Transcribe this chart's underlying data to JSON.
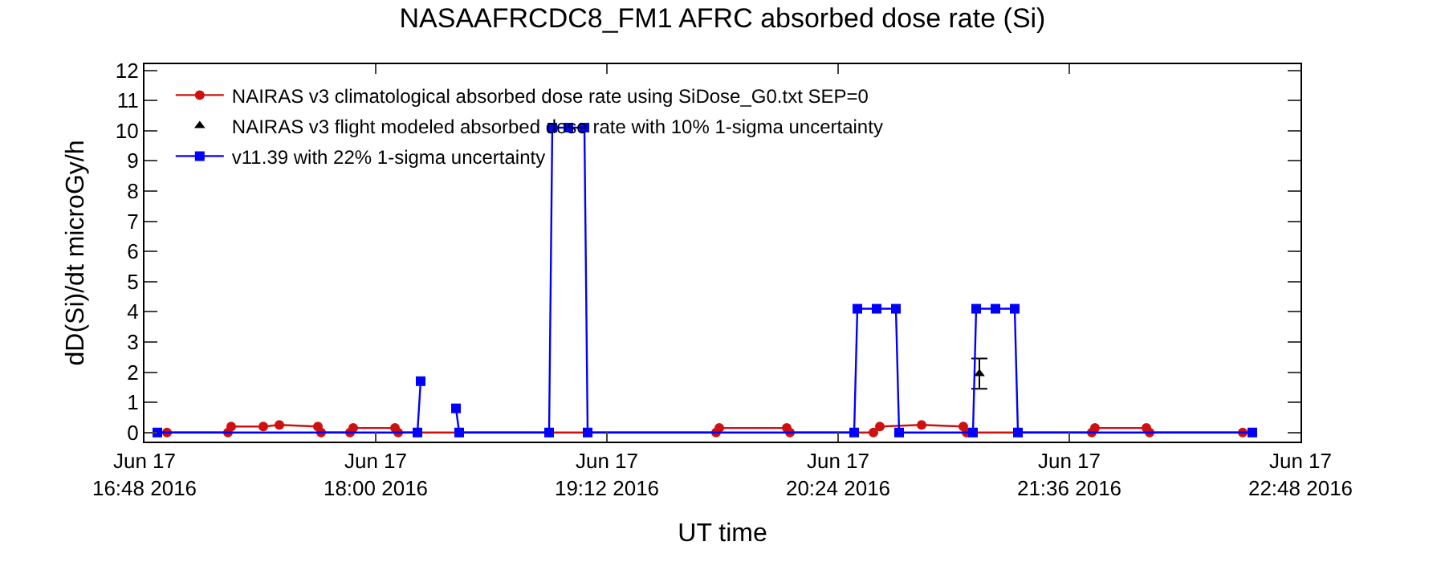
{
  "chart_data": {
    "type": "line",
    "title": "NASAAFRCDC8_FM1 AFRC absorbed dose rate (Si)",
    "xlabel": "UT time",
    "ylabel": "dD(Si)/dt microGy/h",
    "xlim": [
      "2016-06-17T16:48",
      "2016-06-17T22:48"
    ],
    "xticks": [
      {
        "value": "2016-06-17T16:48",
        "label": "Jun 17\n16:48 2016"
      },
      {
        "value": "2016-06-17T18:00",
        "label": "Jun 17\n18:00 2016"
      },
      {
        "value": "2016-06-17T19:12",
        "label": "Jun 17\n19:12 2016"
      },
      {
        "value": "2016-06-17T20:24",
        "label": "Jun 17\n20:24 2016"
      },
      {
        "value": "2016-06-17T21:36",
        "label": "Jun 17\n21:36 2016"
      },
      {
        "value": "2016-06-17T22:48",
        "label": "Jun 17\n22:48 2016"
      }
    ],
    "ylim": [
      -0.3,
      12.2
    ],
    "yticks": [
      0,
      1,
      2,
      3,
      4,
      5,
      6,
      7,
      8,
      9,
      10,
      11,
      12
    ],
    "legend": "top left",
    "series": [
      {
        "name": "NAIRAS v3 climatological absorbed dose rate using SiDose_G0.txt SEP=0",
        "color": "#d01010",
        "marker": "circle",
        "x": [
          "2016-06-17T16:55",
          "2016-06-17T17:14",
          "2016-06-17T17:15",
          "2016-06-17T17:25",
          "2016-06-17T17:30",
          "2016-06-17T17:42",
          "2016-06-17T17:43",
          "2016-06-17T17:52",
          "2016-06-17T17:53",
          "2016-06-17T18:06",
          "2016-06-17T18:07",
          "2016-06-17T19:46",
          "2016-06-17T19:47",
          "2016-06-17T20:08",
          "2016-06-17T20:09",
          "2016-06-17T20:35",
          "2016-06-17T20:37",
          "2016-06-17T20:50",
          "2016-06-17T21:03",
          "2016-06-17T21:04",
          "2016-06-17T21:43",
          "2016-06-17T21:44",
          "2016-06-17T22:00",
          "2016-06-17T22:01",
          "2016-06-17T22:30"
        ],
        "values": [
          0,
          0,
          0.2,
          0.2,
          0.25,
          0.2,
          0,
          0,
          0.15,
          0.15,
          0,
          0,
          0.15,
          0.15,
          0,
          0,
          0.2,
          0.25,
          0.2,
          0,
          0,
          0.15,
          0.15,
          0,
          0
        ]
      },
      {
        "name": "NAIRAS v3 flight modeled absorbed dose rate with 10% 1-sigma uncertainty",
        "color": "#000000",
        "marker": "triangle",
        "type": "scatter",
        "x": [
          "2016-06-17T21:08"
        ],
        "values": [
          1.95
        ],
        "errors": [
          [
            1.45,
            2.45
          ]
        ]
      },
      {
        "name": "v11.39 with 22% 1-sigma uncertainty",
        "color": "#0000ff",
        "marker": "square",
        "x": [
          "2016-06-17T16:52",
          "2016-06-17T18:13",
          "2016-06-17T18:14",
          "2016-06-17T18:15",
          "2016-06-17T18:24",
          "2016-06-17T18:25",
          "2016-06-17T18:26",
          "2016-06-17T18:54",
          "2016-06-17T18:55",
          "2016-06-17T19:00",
          "2016-06-17T19:05",
          "2016-06-17T19:06",
          "2016-06-17T20:29",
          "2016-06-17T20:30",
          "2016-06-17T20:36",
          "2016-06-17T20:42",
          "2016-06-17T20:43",
          "2016-06-17T21:06",
          "2016-06-17T21:07",
          "2016-06-17T21:13",
          "2016-06-17T21:19",
          "2016-06-17T21:20",
          "2016-06-17T22:33"
        ],
        "values": [
          0,
          0,
          1.7,
          null,
          null,
          0.8,
          0,
          0,
          10.1,
          10.1,
          10.1,
          0,
          0,
          4.1,
          4.1,
          4.1,
          0,
          0,
          4.1,
          4.1,
          4.1,
          0,
          0
        ]
      }
    ]
  }
}
